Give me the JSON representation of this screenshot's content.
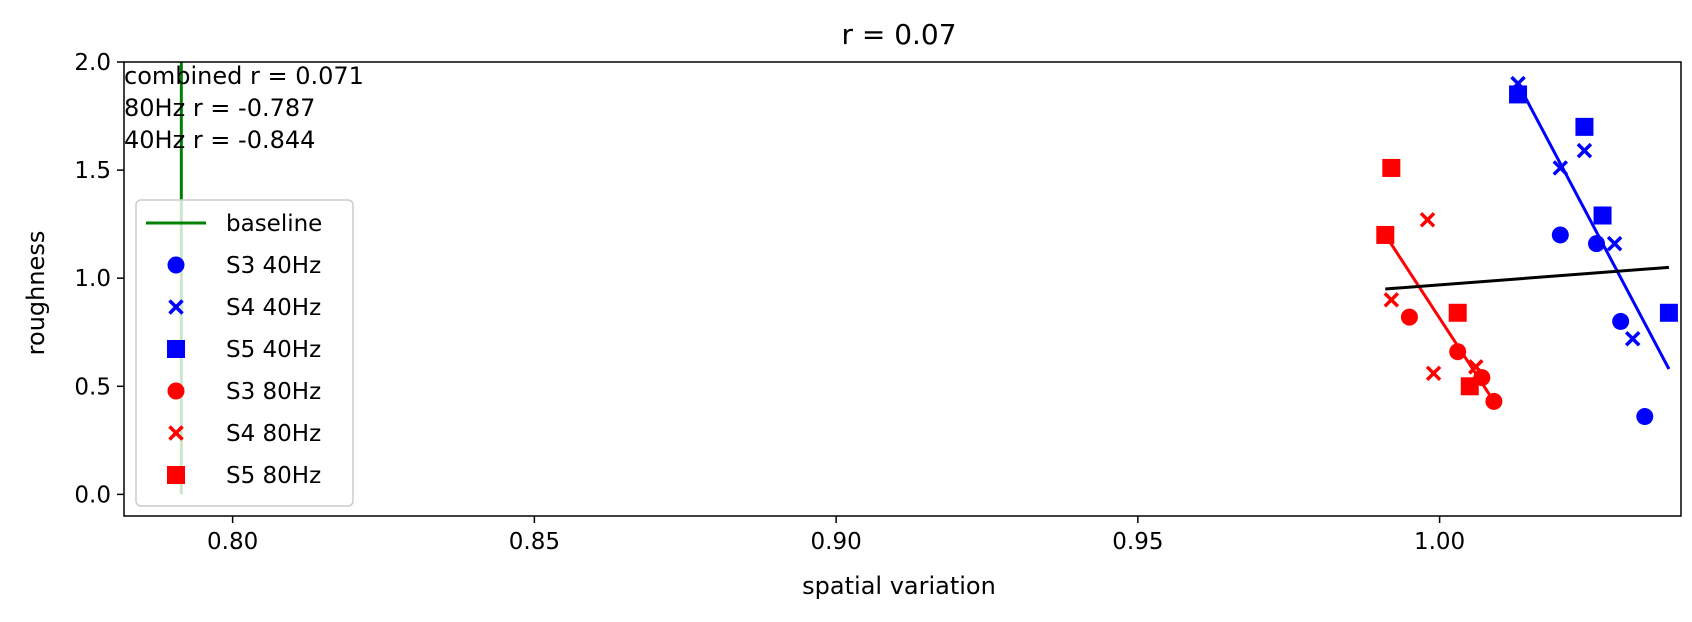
{
  "chart_data": {
    "type": "scatter",
    "title": "r = 0.07",
    "xlabel": "spatial variation",
    "ylabel": "roughness",
    "xlim": [
      0.782,
      1.04
    ],
    "ylim": [
      -0.1,
      2.0
    ],
    "xticks": [
      0.8,
      0.85,
      0.9,
      0.95,
      1.0
    ],
    "xtick_labels": [
      "0.80",
      "0.85",
      "0.90",
      "0.95",
      "1.00"
    ],
    "yticks": [
      0.0,
      0.5,
      1.0,
      1.5,
      2.0
    ],
    "ytick_labels": [
      "0.0",
      "0.5",
      "1.0",
      "1.5",
      "2.0"
    ],
    "grid": false,
    "legend_position": "left",
    "annotations": [
      "combined r = 0.071",
      "80Hz r = -0.787",
      "40Hz r = -0.844"
    ],
    "baseline": {
      "name": "baseline",
      "color": "#008000",
      "x": 0.7915,
      "y": [
        0.0,
        2.0
      ]
    },
    "series": [
      {
        "name": "S3 40Hz",
        "marker": "circle",
        "color": "#0000ff",
        "points": [
          [
            1.02,
            1.2
          ],
          [
            1.026,
            1.16
          ],
          [
            1.03,
            0.8
          ],
          [
            1.034,
            0.36
          ]
        ]
      },
      {
        "name": "S4 40Hz",
        "marker": "x",
        "color": "#0000ff",
        "points": [
          [
            1.013,
            1.9
          ],
          [
            1.02,
            1.51
          ],
          [
            1.024,
            1.59
          ],
          [
            1.029,
            1.16
          ],
          [
            1.032,
            0.72
          ]
        ]
      },
      {
        "name": "S5 40Hz",
        "marker": "square",
        "color": "#0000ff",
        "points": [
          [
            1.013,
            1.85
          ],
          [
            1.024,
            1.7
          ],
          [
            1.027,
            1.29
          ],
          [
            1.038,
            0.84
          ]
        ]
      },
      {
        "name": "S3 80Hz",
        "marker": "circle",
        "color": "#ff0000",
        "points": [
          [
            0.995,
            0.82
          ],
          [
            1.003,
            0.66
          ],
          [
            1.007,
            0.54
          ],
          [
            1.009,
            0.43
          ]
        ]
      },
      {
        "name": "S4 80Hz",
        "marker": "x",
        "color": "#ff0000",
        "points": [
          [
            0.992,
            0.9
          ],
          [
            0.998,
            1.27
          ],
          [
            0.999,
            0.56
          ],
          [
            1.006,
            0.59
          ]
        ]
      },
      {
        "name": "S5 80Hz",
        "marker": "square",
        "color": "#ff0000",
        "points": [
          [
            0.991,
            1.2
          ],
          [
            0.992,
            1.51
          ],
          [
            1.003,
            0.84
          ],
          [
            1.005,
            0.5
          ]
        ]
      }
    ],
    "fit_lines": [
      {
        "label": "40Hz fit",
        "color": "#0000ff",
        "x": [
          1.013,
          1.038
        ],
        "y": [
          1.9,
          0.58
        ]
      },
      {
        "label": "80Hz fit",
        "color": "#ff0000",
        "x": [
          0.991,
          1.009
        ],
        "y": [
          1.2,
          0.43
        ]
      },
      {
        "label": "combined fit",
        "color": "#000000",
        "x": [
          0.991,
          1.038
        ],
        "y": [
          0.95,
          1.05
        ]
      }
    ]
  }
}
